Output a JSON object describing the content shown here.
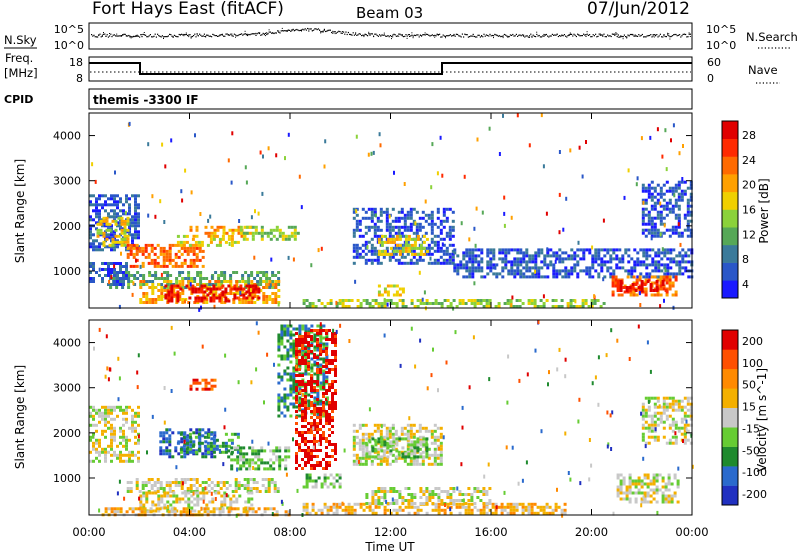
{
  "header": {
    "station": "Fort Hays East (fitACF)",
    "beam": "Beam 03",
    "date": "07/Jun/2012"
  },
  "top_panels": {
    "nsky_label": "N.Sky",
    "nsky_ticks": [
      "10^5",
      "10^0"
    ],
    "nsearch_label": "N.Search",
    "freq_label_line1": "Freq.",
    "freq_label_line2": "[MHz]",
    "freq_ticks": [
      "18",
      "8"
    ],
    "nave_label": "Nave",
    "nave_ticks": [
      "60",
      "0"
    ],
    "cpid_label": "CPID",
    "cpid_value": "themis -3300 IF"
  },
  "chart_data": [
    {
      "type": "heatmap",
      "name": "power",
      "ylabel": "Slant Range [km]",
      "y_ticks": [
        1000,
        2000,
        3000,
        4000
      ],
      "ylim": [
        180,
        4500
      ],
      "x_ticks": [
        "00:00",
        "04:00",
        "08:00",
        "12:00",
        "16:00",
        "20:00",
        "00:00"
      ],
      "xlim_hours": [
        0,
        24
      ],
      "colorbar": {
        "label": "Power [dB]",
        "ticks": [
          "4",
          "8",
          "12",
          "16",
          "20",
          "24",
          "28"
        ],
        "colors": [
          "#1a1aff",
          "#2a57c8",
          "#3a7a9a",
          "#56a857",
          "#8bd23a",
          "#f0d000",
          "#ffa000",
          "#ff6a00",
          "#ff2a00",
          "#e00000"
        ]
      },
      "bands": [
        {
          "t0": 0.0,
          "t1": 2.0,
          "r0": 1500,
          "r1": 2700,
          "level": 1
        },
        {
          "t0": 0.3,
          "t1": 1.6,
          "r0": 1550,
          "r1": 2200,
          "level": 5
        },
        {
          "t0": 1.5,
          "t1": 4.5,
          "r0": 1100,
          "r1": 1600,
          "level": 7
        },
        {
          "t0": 3.5,
          "t1": 6.0,
          "r0": 1600,
          "r1": 1800,
          "level": 5
        },
        {
          "t0": 4.0,
          "t1": 6.5,
          "r0": 1800,
          "r1": 2000,
          "level": 6
        },
        {
          "t0": 6.0,
          "t1": 8.3,
          "r0": 1700,
          "r1": 2000,
          "level": 4
        },
        {
          "t0": 0.8,
          "t1": 7.5,
          "r0": 650,
          "r1": 1000,
          "level": 3
        },
        {
          "t0": 2.0,
          "t1": 7.5,
          "r0": 300,
          "r1": 800,
          "level": 6
        },
        {
          "t0": 3.0,
          "t1": 6.8,
          "r0": 350,
          "r1": 700,
          "level": 9
        },
        {
          "t0": 0.0,
          "t1": 1.5,
          "r0": 700,
          "r1": 1200,
          "level": 1
        },
        {
          "t0": 10.5,
          "t1": 14.5,
          "r0": 1200,
          "r1": 2400,
          "level": 1
        },
        {
          "t0": 11.5,
          "t1": 13.5,
          "r0": 1400,
          "r1": 1800,
          "level": 5
        },
        {
          "t0": 11.5,
          "t1": 12.5,
          "r0": 450,
          "r1": 700,
          "level": 5
        },
        {
          "t0": 8.5,
          "t1": 20.5,
          "r0": 200,
          "r1": 380,
          "level": 4
        },
        {
          "t0": 14.5,
          "t1": 24.0,
          "r0": 900,
          "r1": 1500,
          "level": 1
        },
        {
          "t0": 20.8,
          "t1": 23.4,
          "r0": 500,
          "r1": 900,
          "level": 7
        },
        {
          "t0": 21.0,
          "t1": 23.0,
          "r0": 600,
          "r1": 800,
          "level": 9
        },
        {
          "t0": 22.0,
          "t1": 24.0,
          "r0": 1800,
          "r1": 3000,
          "level": 1
        }
      ]
    },
    {
      "type": "heatmap",
      "name": "velocity",
      "ylabel": "Slant Range [km]",
      "y_ticks": [
        1000,
        2000,
        3000,
        4000
      ],
      "ylim": [
        180,
        4500
      ],
      "x_ticks": [
        "00:00",
        "04:00",
        "08:00",
        "12:00",
        "16:00",
        "20:00",
        "00:00"
      ],
      "xlim_hours": [
        0,
        24
      ],
      "xlabel": "Time UT",
      "colorbar": {
        "label": "Velocity [m s^-1]",
        "ticks": [
          "200",
          "100",
          "50",
          "15",
          "-15",
          "-50",
          "-100",
          "-200"
        ],
        "colors": [
          "#2030c0",
          "#2a6acd",
          "#1f8a2e",
          "#66cc33",
          "#c8c8c8",
          "#f4b000",
          "#ff8a00",
          "#ff5000",
          "#e00000"
        ]
      },
      "bands": [
        {
          "t0": 0.0,
          "t1": 2.0,
          "r0": 1400,
          "r1": 2600,
          "level": 4
        },
        {
          "t0": 2.8,
          "t1": 5.0,
          "r0": 1500,
          "r1": 2100,
          "level": 1
        },
        {
          "t0": 3.5,
          "t1": 6.0,
          "r0": 1600,
          "r1": 2000,
          "level": 2
        },
        {
          "t0": 5.5,
          "t1": 8.0,
          "r0": 1200,
          "r1": 1700,
          "level": 3
        },
        {
          "t0": 1.5,
          "t1": 7.5,
          "r0": 700,
          "r1": 1000,
          "level": 4
        },
        {
          "t0": 2.0,
          "t1": 6.5,
          "r0": 300,
          "r1": 700,
          "level": 4
        },
        {
          "t0": 0.5,
          "t1": 8.0,
          "r0": 200,
          "r1": 350,
          "level": 5
        },
        {
          "t0": 8.5,
          "t1": 10.0,
          "r0": 800,
          "r1": 1100,
          "level": 3
        },
        {
          "t0": 10.5,
          "t1": 14.0,
          "r0": 1300,
          "r1": 2200,
          "level": 4
        },
        {
          "t0": 11.0,
          "t1": 13.5,
          "r0": 1500,
          "r1": 1900,
          "level": 3
        },
        {
          "t0": 8.5,
          "t1": 19.0,
          "r0": 200,
          "r1": 450,
          "level": 5
        },
        {
          "t0": 11.0,
          "t1": 16.0,
          "r0": 450,
          "r1": 800,
          "level": 4
        },
        {
          "t0": 21.0,
          "t1": 23.5,
          "r0": 500,
          "r1": 1100,
          "level": 4
        },
        {
          "t0": 22.0,
          "t1": 24.0,
          "r0": 1800,
          "r1": 2800,
          "level": 4
        },
        {
          "t0": 4.0,
          "t1": 5.0,
          "r0": 3000,
          "r1": 3200,
          "level": 7
        },
        {
          "t0": 7.5,
          "t1": 9.5,
          "r0": 2400,
          "r1": 4400,
          "level": 2
        },
        {
          "t0": 8.2,
          "t1": 9.8,
          "r0": 1200,
          "r1": 4300,
          "level": 8
        }
      ]
    }
  ]
}
